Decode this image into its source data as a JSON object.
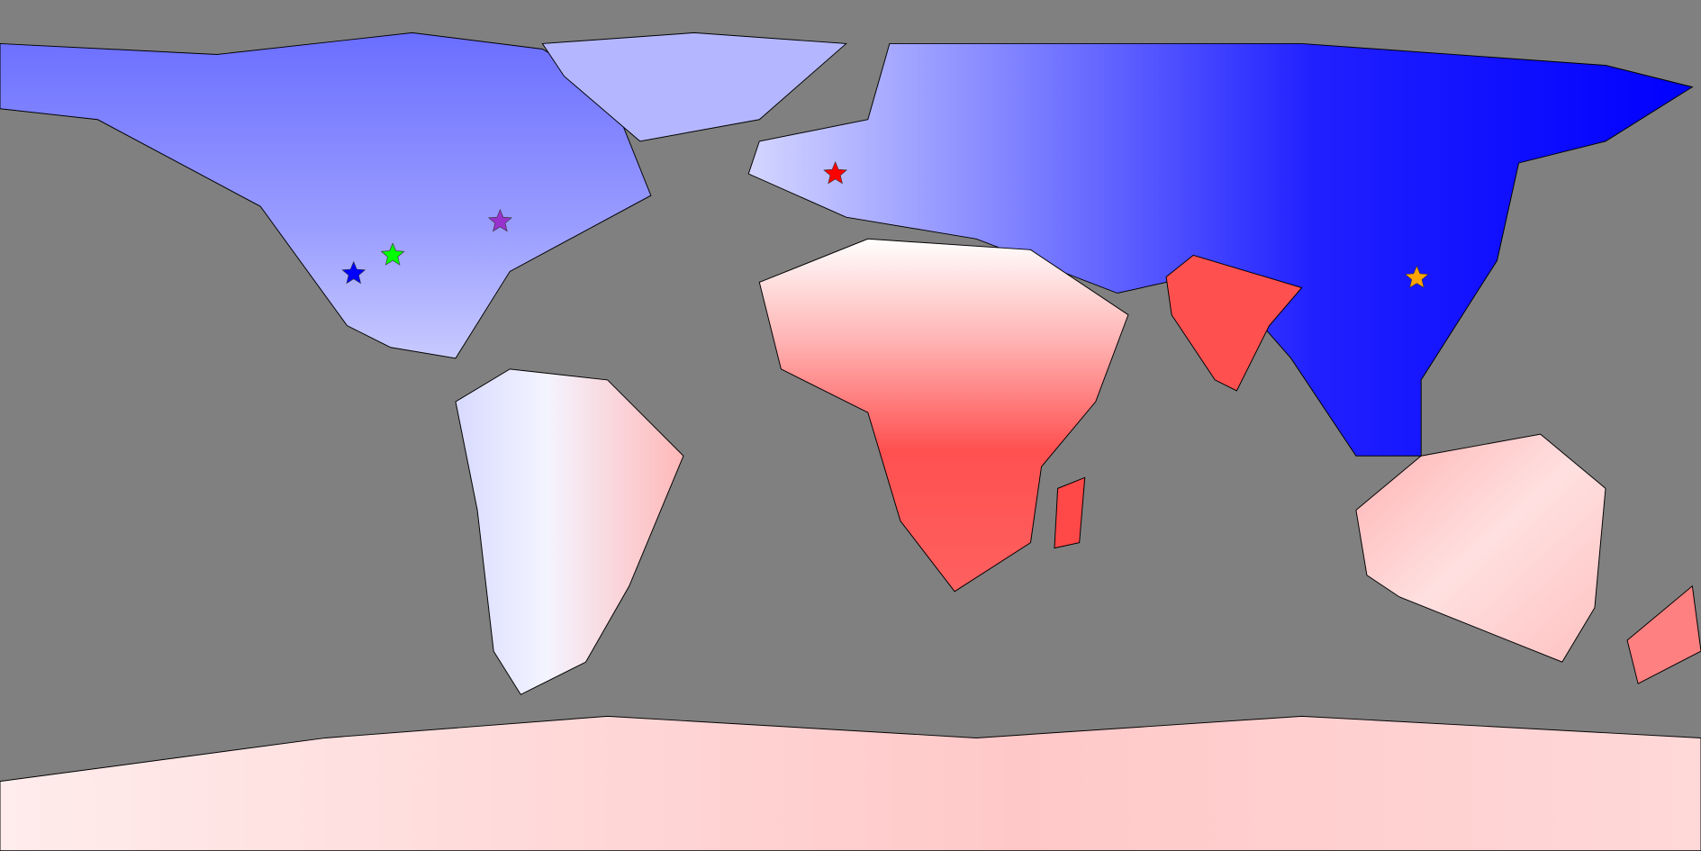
{
  "markers": [
    {
      "color": "#ff0000"
    },
    {
      "color": "#9932cc"
    },
    {
      "color": "#00ff00"
    },
    {
      "color": "#0000ff"
    },
    {
      "color": "#ffa500"
    }
  ]
}
